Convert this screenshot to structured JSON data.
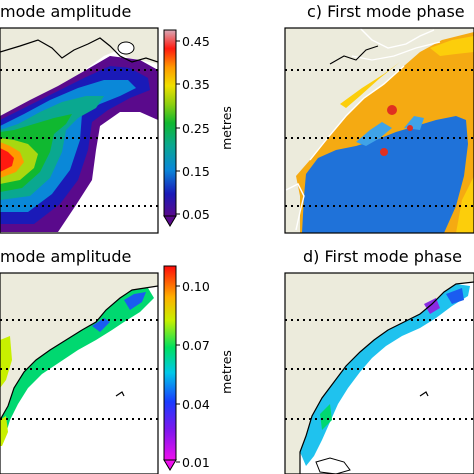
{
  "chart_data": [
    {
      "type": "heatmap",
      "panel": "top-left",
      "title": "mode amplitude",
      "colorbar": {
        "label": "metres",
        "ticks": [
          "0.45",
          "0.35",
          "0.25",
          "0.15",
          "0.05"
        ],
        "range": [
          0.05,
          0.48
        ],
        "colormap": "nipy_spectral"
      }
    },
    {
      "type": "heatmap",
      "panel": "top-right",
      "title": "c) First mode phase"
    },
    {
      "type": "heatmap",
      "panel": "bottom-left",
      "title": "mode amplitude",
      "colorbar": {
        "label": "metres",
        "ticks": [
          "0.10",
          "0.07",
          "0.04",
          "0.01"
        ],
        "range": [
          0.01,
          0.11
        ],
        "colormap": "gist_rainbow"
      }
    },
    {
      "type": "heatmap",
      "panel": "bottom-right",
      "title": "d) First mode phase"
    }
  ],
  "colors": {
    "land": "#ecebdc",
    "phase_orange": "#f5aa12",
    "phase_yellow": "#fcce0b",
    "phase_blue": "#1f72d9",
    "phase_cyan": "#3fa3e8"
  }
}
